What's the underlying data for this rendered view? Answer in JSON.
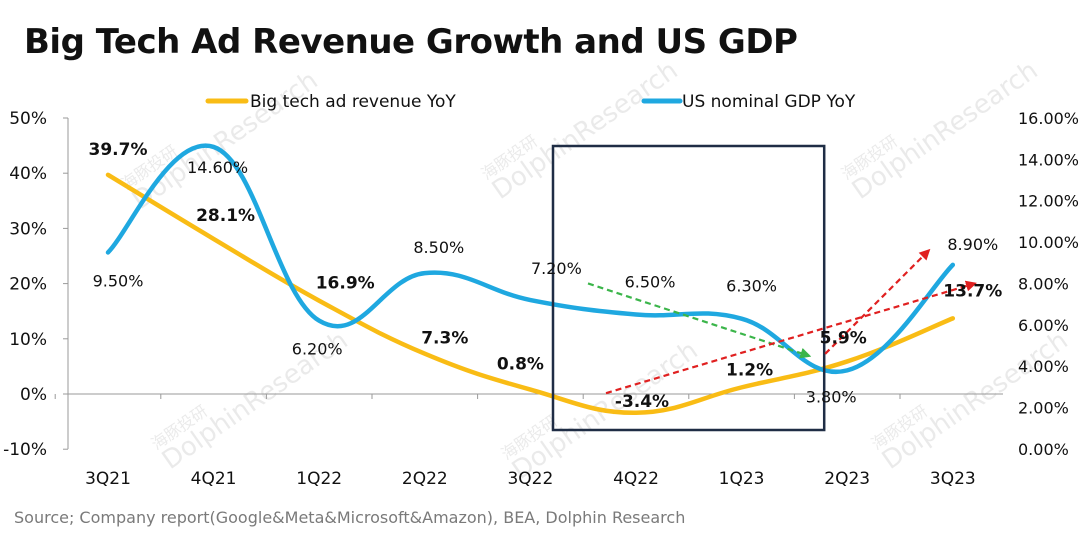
{
  "title": "Big Tech Ad Revenue Growth and US GDP",
  "source": "Source; Company report(Google&Meta&Microsoft&Amazon), BEA, Dolphin Research",
  "watermark": "海豚投研 DolphinResearch",
  "colors": {
    "ad": "#F9BC15",
    "gdp": "#1FA8E0",
    "box": "#1F2D45",
    "red_arrow": "#E02020",
    "green_arrow": "#3BB54A"
  },
  "chart_data": {
    "type": "line",
    "categories": [
      "3Q21",
      "4Q21",
      "1Q22",
      "2Q22",
      "3Q22",
      "4Q22",
      "1Q23",
      "2Q23",
      "3Q23"
    ],
    "y_left": {
      "lim": [
        -10,
        50
      ],
      "ticks": [
        -10,
        0,
        10,
        20,
        30,
        40,
        50
      ],
      "tick_labels": [
        "-10%",
        "0%",
        "10%",
        "20%",
        "30%",
        "40%",
        "50%"
      ]
    },
    "y_right": {
      "lim": [
        0,
        16
      ],
      "ticks": [
        0,
        2,
        4,
        6,
        8,
        10,
        12,
        14,
        16
      ],
      "tick_labels": [
        "0.00%",
        "2.00%",
        "4.00%",
        "6.00%",
        "8.00%",
        "10.00%",
        "12.00%",
        "14.00%",
        "16.00%"
      ]
    },
    "legend_position": "top",
    "series": [
      {
        "name": "Big tech ad revenue YoY",
        "axis": "left",
        "color": "#F9BC15",
        "values": [
          39.7,
          28.1,
          16.9,
          7.3,
          0.8,
          -3.4,
          1.2,
          5.9,
          13.7
        ],
        "labels": [
          "39.7%",
          "28.1%",
          "16.9%",
          "7.3%",
          "0.8%",
          "-3.4%",
          "1.2%",
          "5.9%",
          "13.7%"
        ]
      },
      {
        "name": "US nominal GDP YoY",
        "axis": "right",
        "color": "#1FA8E0",
        "values": [
          9.5,
          14.6,
          6.2,
          8.5,
          7.2,
          6.5,
          6.3,
          3.8,
          8.9
        ],
        "labels": [
          "9.50%",
          "14.60%",
          "6.20%",
          "8.50%",
          "7.20%",
          "6.50%",
          "6.30%",
          "3.80%",
          "8.90%"
        ]
      }
    ],
    "annotations": {
      "highlight_box": {
        "from_category": "4Q22",
        "to_category": "2Q23"
      },
      "green_arrow": {
        "from": [
          "4Q22",
          8.0
        ],
        "to": [
          "2Q23",
          4.5
        ],
        "axis": "right",
        "style": "dashed"
      },
      "red_arrows": [
        {
          "from": [
            "4Q22",
            2.7
          ],
          "to": [
            "3Q23",
            8.0
          ],
          "axis": "right",
          "style": "dashed"
        },
        {
          "from": [
            "2Q23",
            4.6
          ],
          "to": [
            "3Q23",
            9.6
          ],
          "axis": "right",
          "style": "dashed"
        }
      ]
    }
  }
}
